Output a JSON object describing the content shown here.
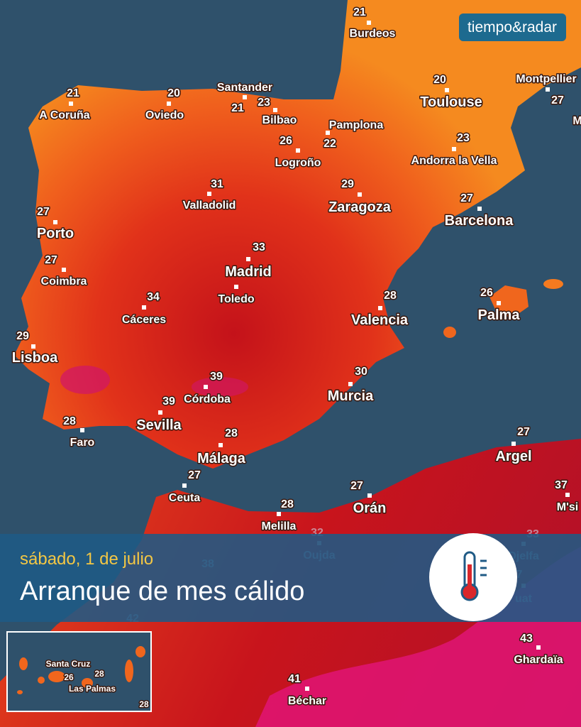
{
  "logo": "tiempo&radar",
  "banner": {
    "date": "sábado, 1 de julio",
    "headline": "Arranque de mes cálido"
  },
  "cities": [
    {
      "name": "Burdeos",
      "temp": 21
    },
    {
      "name": "A Coruña",
      "temp": 21
    },
    {
      "name": "Oviedo",
      "temp": 20
    },
    {
      "name": "Santander",
      "temp": 21
    },
    {
      "name": "Bilbao",
      "temp": 23
    },
    {
      "name": "Pamplona",
      "temp": 22
    },
    {
      "name": "Logroño",
      "temp": 26
    },
    {
      "name": "Toulouse",
      "temp": 20
    },
    {
      "name": "Montpellier",
      "temp": 27
    },
    {
      "name": "M"
    },
    {
      "name": "Andorra la Vella",
      "temp": 23
    },
    {
      "name": "Valladolid",
      "temp": 31
    },
    {
      "name": "Zaragoza",
      "temp": 29
    },
    {
      "name": "Barcelona",
      "temp": 27
    },
    {
      "name": "Porto",
      "temp": 27
    },
    {
      "name": "Madrid",
      "temp": 33
    },
    {
      "name": "Coimbra",
      "temp": 27
    },
    {
      "name": "Toledo"
    },
    {
      "name": "Cáceres",
      "temp": 34
    },
    {
      "name": "Valencia",
      "temp": 28
    },
    {
      "name": "Palma",
      "temp": 26
    },
    {
      "name": "Lisboa",
      "temp": 29
    },
    {
      "name": "Córdoba",
      "temp": 39
    },
    {
      "name": "Sevilla",
      "temp": 39
    },
    {
      "name": "Murcia",
      "temp": 30
    },
    {
      "name": "Faro",
      "temp": 28
    },
    {
      "name": "Málaga",
      "temp": 28
    },
    {
      "name": "Argel",
      "temp": 27
    },
    {
      "name": "Ceuta",
      "temp": 27
    },
    {
      "name": "Orán",
      "temp": 27
    },
    {
      "name": "M'si",
      "temp": 37
    },
    {
      "name": "Melilla",
      "temp": 28
    },
    {
      "name": "Oujda",
      "temp": 32
    },
    {
      "name": "Djelfa",
      "temp": 33
    },
    {
      "name": "uat",
      "temp": 7
    },
    {
      "name": "Ghardaïa",
      "temp": 43
    },
    {
      "name": "Béchar",
      "temp": 41
    }
  ],
  "loose_temps": [
    38,
    42
  ],
  "inset": {
    "labels": [
      "Santa Cruz",
      "Las Palmas"
    ],
    "temps": [
      26,
      28,
      28
    ]
  }
}
